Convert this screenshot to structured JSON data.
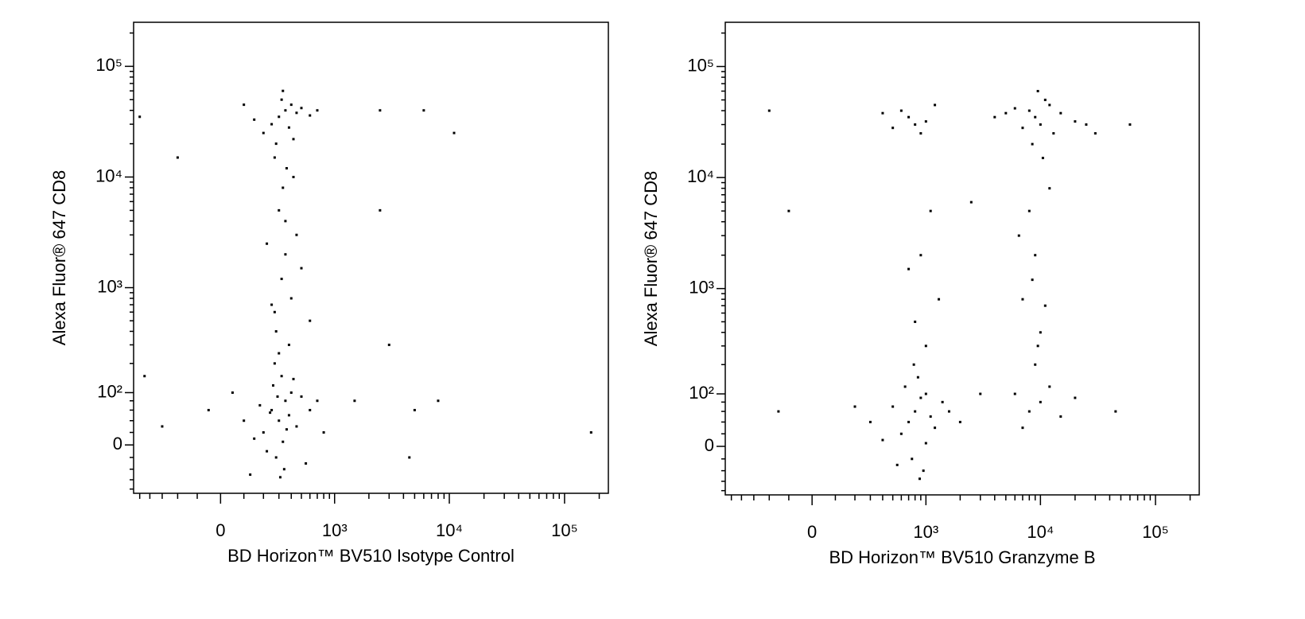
{
  "chart_data": [
    {
      "type": "scatter",
      "x_label": "BD Horizon™ BV510 Isotype Control",
      "y_label": "Alexa Fluor® 647 CD8",
      "color": "#000000",
      "xlim": [
        -570,
        240000
      ],
      "ylim": [
        -90,
        250000
      ],
      "xticks": [
        0,
        {
          "value": 1000,
          "label": "10³"
        },
        {
          "value": 10000,
          "label": "10⁴"
        },
        {
          "value": 100000,
          "label": "10⁵"
        }
      ],
      "yticks": [
        0,
        {
          "value": 100,
          "label": "10²"
        },
        {
          "value": 1000,
          "label": "10³"
        },
        {
          "value": 10000,
          "label": "10⁴"
        },
        {
          "value": 100000,
          "label": "10⁵"
        }
      ],
      "xminorticks": [
        -500,
        -400,
        -300,
        -200,
        -100,
        100,
        200,
        300,
        400,
        500,
        600,
        700,
        800,
        900,
        2000,
        3000,
        4000,
        5000,
        6000,
        7000,
        8000,
        9000,
        20000,
        30000,
        40000,
        50000,
        60000,
        70000,
        80000,
        90000,
        200000
      ],
      "yminorticks": [
        -80,
        -60,
        -40,
        -20,
        20,
        40,
        60,
        80,
        200,
        300,
        400,
        500,
        600,
        700,
        800,
        900,
        2000,
        3000,
        4000,
        5000,
        6000,
        7000,
        8000,
        9000,
        20000,
        30000,
        40000,
        50000,
        60000,
        70000,
        80000,
        90000,
        200000
      ],
      "x": [
        250,
        300,
        350,
        200,
        400,
        280,
        320,
        180,
        450,
        500,
        150,
        260,
        340,
        380,
        420,
        220,
        600,
        100,
        700,
        270,
        330,
        290,
        360,
        240,
        310,
        -50,
        800,
        550,
        50,
        130,
        300,
        350,
        250,
        400,
        200,
        450,
        320,
        280,
        380,
        500,
        150,
        600,
        330,
        270,
        420,
        700,
        100,
        360,
        300,
        350,
        400,
        280,
        320,
        450,
        250,
        380,
        330,
        500,
        220,
        600,
        300,
        350,
        420,
        270,
        -500,
        2500,
        6000,
        11000,
        -200,
        2500,
        5000,
        1500,
        8000,
        170000,
        -450,
        3000,
        -300,
        4500
      ],
      "values": [
        60,
        40,
        80,
        20,
        100,
        -20,
        150,
        70,
        30,
        90,
        10,
        120,
        -40,
        50,
        140,
        -10,
        60,
        40,
        80,
        200,
        5,
        90,
        25,
        55,
        -55,
        60,
        20,
        -30,
        100,
        -50,
        35000,
        40000,
        30000,
        45000,
        25000,
        38000,
        50000,
        20000,
        28000,
        42000,
        33000,
        36000,
        60000,
        15000,
        22000,
        40000,
        45000,
        12000,
        5000,
        2000,
        800,
        400,
        1200,
        3000,
        700,
        300,
        8000,
        1500,
        2500,
        500,
        250,
        4000,
        10000,
        600,
        35000,
        40000,
        40000,
        25000,
        15000,
        5000,
        60,
        80,
        80,
        20,
        150,
        300,
        30,
        -20
      ]
    },
    {
      "type": "scatter",
      "x_label": "BD Horizon™ BV510 Granzyme B",
      "y_label": "Alexa Fluor® 647 CD8",
      "color": "#000000",
      "xlim": [
        -570,
        240000
      ],
      "ylim": [
        -90,
        250000
      ],
      "xticks": [
        0,
        {
          "value": 1000,
          "label": "10³"
        },
        {
          "value": 10000,
          "label": "10⁴"
        },
        {
          "value": 100000,
          "label": "10⁵"
        }
      ],
      "yticks": [
        0,
        {
          "value": 100,
          "label": "10²"
        },
        {
          "value": 1000,
          "label": "10³"
        },
        {
          "value": 10000,
          "label": "10⁴"
        },
        {
          "value": 100000,
          "label": "10⁵"
        }
      ],
      "xminorticks": [
        -500,
        -400,
        -300,
        -200,
        -100,
        100,
        200,
        300,
        400,
        500,
        600,
        700,
        800,
        900,
        2000,
        3000,
        4000,
        5000,
        6000,
        7000,
        8000,
        9000,
        20000,
        30000,
        40000,
        50000,
        60000,
        70000,
        80000,
        90000,
        200000
      ],
      "yminorticks": [
        -80,
        -60,
        -40,
        -20,
        20,
        40,
        60,
        80,
        200,
        300,
        400,
        500,
        600,
        700,
        800,
        900,
        2000,
        3000,
        4000,
        5000,
        6000,
        7000,
        8000,
        9000,
        20000,
        30000,
        40000,
        50000,
        60000,
        70000,
        80000,
        90000,
        200000
      ],
      "x": [
        800,
        700,
        900,
        600,
        1000,
        750,
        850,
        500,
        1200,
        1400,
        400,
        650,
        950,
        1100,
        300,
        1600,
        780,
        880,
        550,
        1000,
        2000,
        200,
        9000,
        8000,
        10000,
        12000,
        7000,
        15000,
        11000,
        6000,
        20000,
        8500,
        13000,
        5000,
        25000,
        9500,
        4000,
        30000,
        10500,
        800,
        700,
        900,
        600,
        1000,
        500,
        1200,
        400,
        8000,
        9000,
        7000,
        10000,
        8500,
        6500,
        11000,
        9500,
        12000,
        900,
        800,
        1000,
        1100,
        700,
        1300,
        10000,
        8000,
        12000,
        9000,
        15000,
        6000,
        20000,
        7000,
        -200,
        -100,
        45000,
        60000,
        -150,
        3000,
        2500
      ],
      "values": [
        60,
        40,
        90,
        20,
        100,
        -20,
        150,
        70,
        30,
        80,
        10,
        120,
        -40,
        50,
        40,
        60,
        200,
        -55,
        -30,
        5,
        40,
        70,
        35000,
        40000,
        30000,
        45000,
        28000,
        38000,
        50000,
        42000,
        32000,
        20000,
        25000,
        38000,
        30000,
        60000,
        35000,
        25000,
        15000,
        30000,
        35000,
        25000,
        40000,
        32000,
        28000,
        45000,
        38000,
        5000,
        2000,
        800,
        400,
        1200,
        3000,
        700,
        300,
        8000,
        2000,
        500,
        300,
        5000,
        1500,
        800,
        80,
        60,
        120,
        200,
        50,
        100,
        90,
        30,
        40000,
        5000,
        60,
        30000,
        60,
        100,
        6000
      ]
    }
  ]
}
